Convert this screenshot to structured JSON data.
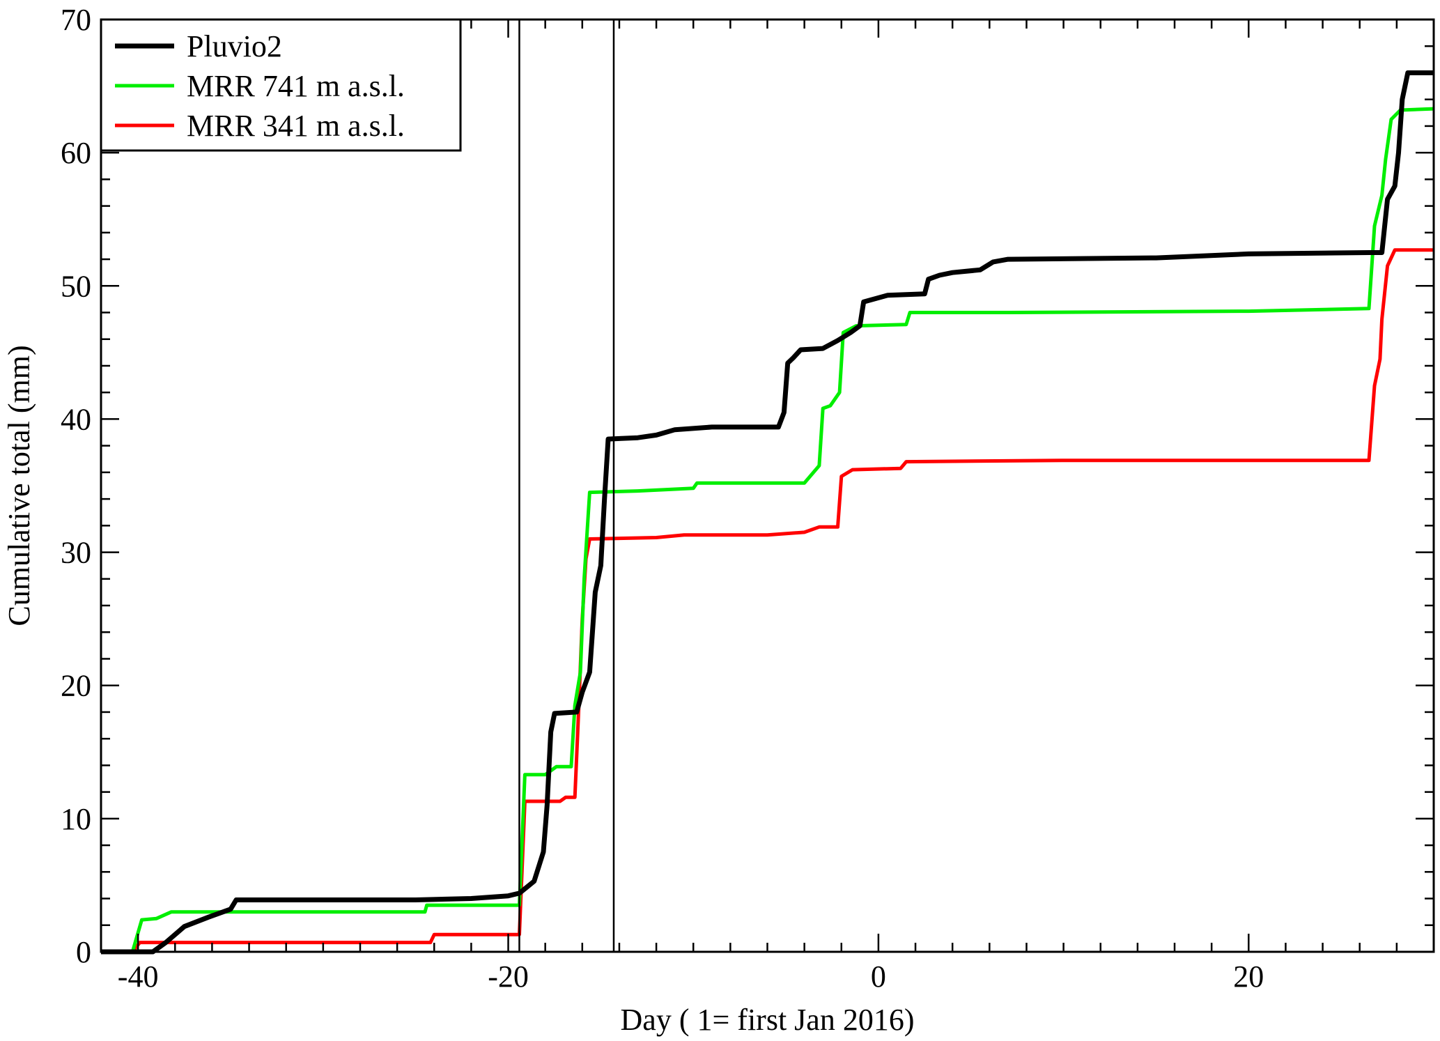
{
  "chart_data": {
    "type": "line",
    "title": "",
    "xlabel": "Day ( 1= first Jan 2016)",
    "ylabel": "Cumulative total (mm)",
    "xlim": [
      -42,
      30
    ],
    "ylim": [
      0,
      70
    ],
    "x_ticks": [
      -40,
      -20,
      0,
      20
    ],
    "y_ticks": [
      0,
      10,
      20,
      30,
      40,
      50,
      60,
      70
    ],
    "grid": false,
    "legend_position": "top-left",
    "vertical_lines": [
      -19.4,
      -14.3
    ],
    "series": [
      {
        "name": "Pluvio2",
        "color": "#000000",
        "points": [
          [
            -42,
            0
          ],
          [
            -39.2,
            0
          ],
          [
            -38.5,
            0.7
          ],
          [
            -37.5,
            1.9
          ],
          [
            -36.2,
            2.6
          ],
          [
            -35,
            3.2
          ],
          [
            -34.7,
            3.9
          ],
          [
            -25,
            3.9
          ],
          [
            -22,
            4.0
          ],
          [
            -20,
            4.2
          ],
          [
            -19.4,
            4.4
          ],
          [
            -18.6,
            5.3
          ],
          [
            -18.1,
            7.5
          ],
          [
            -17.9,
            11
          ],
          [
            -17.7,
            16.5
          ],
          [
            -17.5,
            17.9
          ],
          [
            -16.3,
            18.0
          ],
          [
            -16.0,
            19.5
          ],
          [
            -15.6,
            21
          ],
          [
            -15.3,
            27
          ],
          [
            -15.0,
            29
          ],
          [
            -14.8,
            34
          ],
          [
            -14.6,
            38.5
          ],
          [
            -13,
            38.6
          ],
          [
            -12,
            38.8
          ],
          [
            -11,
            39.2
          ],
          [
            -9,
            39.4
          ],
          [
            -5.4,
            39.4
          ],
          [
            -5.1,
            40.5
          ],
          [
            -4.9,
            44.2
          ],
          [
            -4.6,
            44.6
          ],
          [
            -4.2,
            45.2
          ],
          [
            -3.0,
            45.3
          ],
          [
            -2.2,
            45.9
          ],
          [
            -1.5,
            46.5
          ],
          [
            -1.0,
            47.0
          ],
          [
            -0.8,
            48.8
          ],
          [
            0.5,
            49.3
          ],
          [
            2.5,
            49.4
          ],
          [
            2.7,
            50.5
          ],
          [
            3.3,
            50.8
          ],
          [
            4,
            51.0
          ],
          [
            5.5,
            51.2
          ],
          [
            6.2,
            51.8
          ],
          [
            7,
            52.0
          ],
          [
            15,
            52.1
          ],
          [
            20,
            52.4
          ],
          [
            26.5,
            52.5
          ],
          [
            27.2,
            52.5
          ],
          [
            27.5,
            56.5
          ],
          [
            27.9,
            57.5
          ],
          [
            28.1,
            60
          ],
          [
            28.3,
            64
          ],
          [
            28.6,
            66.0
          ],
          [
            30,
            66.0
          ]
        ]
      },
      {
        "name": "MRR 741 m a.s.l.",
        "color": "#00ee00",
        "points": [
          [
            -42,
            0
          ],
          [
            -40.3,
            0
          ],
          [
            -39.8,
            2.4
          ],
          [
            -39,
            2.5
          ],
          [
            -38.2,
            3.0
          ],
          [
            -24.5,
            3.0
          ],
          [
            -24.4,
            3.5
          ],
          [
            -19.4,
            3.5
          ],
          [
            -19.1,
            13.3
          ],
          [
            -18,
            13.3
          ],
          [
            -17.4,
            13.9
          ],
          [
            -16.6,
            13.9
          ],
          [
            -16.4,
            18.5
          ],
          [
            -16.1,
            21
          ],
          [
            -15.9,
            28
          ],
          [
            -15.6,
            34.5
          ],
          [
            -13,
            34.6
          ],
          [
            -10.0,
            34.8
          ],
          [
            -9.8,
            35.2
          ],
          [
            -4.0,
            35.2
          ],
          [
            -3.2,
            36.5
          ],
          [
            -3.0,
            40.8
          ],
          [
            -2.6,
            41.0
          ],
          [
            -2.1,
            42
          ],
          [
            -1.9,
            46.5
          ],
          [
            -1.2,
            47.0
          ],
          [
            1.5,
            47.1
          ],
          [
            1.7,
            48.0
          ],
          [
            7,
            48.0
          ],
          [
            20,
            48.1
          ],
          [
            26.5,
            48.3
          ],
          [
            26.8,
            54.5
          ],
          [
            27.2,
            56.8
          ],
          [
            27.4,
            59.5
          ],
          [
            27.7,
            62.5
          ],
          [
            28.2,
            63.2
          ],
          [
            30,
            63.3
          ]
        ]
      },
      {
        "name": "MRR 341 m a.s.l.",
        "color": "#ff0000",
        "points": [
          [
            -42,
            0
          ],
          [
            -40.3,
            0
          ],
          [
            -39.9,
            0.7
          ],
          [
            -24.2,
            0.7
          ],
          [
            -24.0,
            1.3
          ],
          [
            -19.4,
            1.3
          ],
          [
            -19.1,
            11.3
          ],
          [
            -17.2,
            11.3
          ],
          [
            -16.9,
            11.6
          ],
          [
            -16.4,
            11.6
          ],
          [
            -16.2,
            18
          ],
          [
            -16.0,
            25
          ],
          [
            -15.8,
            29.5
          ],
          [
            -15.6,
            31.0
          ],
          [
            -12,
            31.1
          ],
          [
            -10.5,
            31.3
          ],
          [
            -6,
            31.3
          ],
          [
            -4,
            31.5
          ],
          [
            -3.2,
            31.9
          ],
          [
            -2.2,
            31.9
          ],
          [
            -2.0,
            35.7
          ],
          [
            -1.4,
            36.2
          ],
          [
            1.2,
            36.3
          ],
          [
            1.5,
            36.8
          ],
          [
            10,
            36.9
          ],
          [
            26.5,
            36.9
          ],
          [
            26.8,
            42.5
          ],
          [
            27.1,
            44.5
          ],
          [
            27.2,
            47.5
          ],
          [
            27.5,
            51.5
          ],
          [
            27.9,
            52.7
          ],
          [
            30,
            52.7
          ]
        ]
      }
    ]
  }
}
